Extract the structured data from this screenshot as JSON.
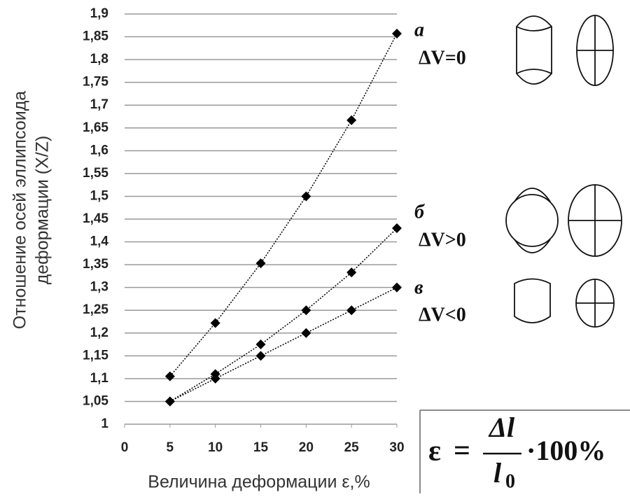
{
  "chart_data": {
    "type": "line",
    "y_label_lines": [
      "Отношение осей эллипсоида",
      "деформации (X/Z)"
    ],
    "x_label": "Величина деформации ε,%",
    "x": [
      5,
      10,
      15,
      20,
      25,
      30
    ],
    "xlim": [
      0,
      30
    ],
    "xticks": [
      0,
      5,
      10,
      15,
      20,
      25,
      30
    ],
    "ylim": [
      1,
      1.9
    ],
    "yticks": [
      {
        "value": 1,
        "label": "1"
      },
      {
        "value": 1.05,
        "label": "1,05"
      },
      {
        "value": 1.1,
        "label": "1,1"
      },
      {
        "value": 1.15,
        "label": "1,15"
      },
      {
        "value": 1.2,
        "label": "1,2"
      },
      {
        "value": 1.25,
        "label": "1,25"
      },
      {
        "value": 1.3,
        "label": "1,3"
      },
      {
        "value": 1.35,
        "label": "1,35"
      },
      {
        "value": 1.4,
        "label": "1,4"
      },
      {
        "value": 1.45,
        "label": "1,45"
      },
      {
        "value": 1.5,
        "label": "1,5"
      },
      {
        "value": 1.55,
        "label": "1,55"
      },
      {
        "value": 1.6,
        "label": "1,6"
      },
      {
        "value": 1.65,
        "label": "1,65"
      },
      {
        "value": 1.7,
        "label": "1,7"
      },
      {
        "value": 1.75,
        "label": "1,75"
      },
      {
        "value": 1.8,
        "label": "1,8"
      },
      {
        "value": 1.85,
        "label": "1,85"
      },
      {
        "value": 1.9,
        "label": "1,9"
      }
    ],
    "grid": true,
    "series": [
      {
        "name": "а",
        "condition": "ΔV=0",
        "color": "#000000",
        "values": [
          1.105,
          1.222,
          1.353,
          1.5,
          1.667,
          1.857
        ]
      },
      {
        "name": "б",
        "condition": "ΔV>0",
        "color": "#000000",
        "values": [
          1.05,
          1.11,
          1.175,
          1.25,
          1.333,
          1.43
        ]
      },
      {
        "name": "в",
        "condition": "ΔV<0",
        "color": "#000000",
        "values": [
          1.05,
          1.1,
          1.15,
          1.2,
          1.25,
          1.3
        ]
      }
    ],
    "formula": {
      "lhs": "ε",
      "equals": "=",
      "numerator": "Δl",
      "denominator": "l",
      "denominator_sub": "0",
      "rhs": "·100%"
    }
  }
}
